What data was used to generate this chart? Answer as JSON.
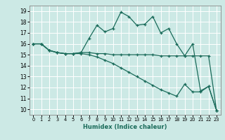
{
  "xlabel": "Humidex (Indice chaleur)",
  "bg_color": "#cce9e5",
  "grid_color": "#ffffff",
  "line_color": "#1a6b5a",
  "xlim": [
    -0.5,
    23.5
  ],
  "ylim": [
    9.5,
    19.5
  ],
  "xticks": [
    0,
    1,
    2,
    3,
    4,
    5,
    6,
    7,
    8,
    9,
    10,
    11,
    12,
    13,
    14,
    15,
    16,
    17,
    18,
    19,
    20,
    21,
    22,
    23
  ],
  "yticks": [
    10,
    11,
    12,
    13,
    14,
    15,
    16,
    17,
    18,
    19
  ],
  "line1_x": [
    0,
    1,
    2,
    3,
    4,
    5,
    6,
    7,
    8,
    9,
    10,
    11,
    12,
    13,
    14,
    15,
    16,
    17,
    18,
    19,
    20,
    21,
    22,
    23
  ],
  "line1_y": [
    16.0,
    16.0,
    15.4,
    15.2,
    15.1,
    15.1,
    15.2,
    16.5,
    17.7,
    17.1,
    17.4,
    18.9,
    18.5,
    17.7,
    17.8,
    18.5,
    17.0,
    17.4,
    16.0,
    14.9,
    16.0,
    11.7,
    12.1,
    9.9
  ],
  "line2_x": [
    0,
    1,
    2,
    3,
    4,
    5,
    6,
    7,
    8,
    9,
    10,
    11,
    12,
    13,
    14,
    15,
    16,
    17,
    18,
    19,
    20,
    21,
    22,
    23
  ],
  "line2_y": [
    16.0,
    16.0,
    15.4,
    15.2,
    15.1,
    15.1,
    15.2,
    15.2,
    15.1,
    15.1,
    15.0,
    15.0,
    15.0,
    15.0,
    15.0,
    15.0,
    14.9,
    14.9,
    14.9,
    14.9,
    14.9,
    14.9,
    14.9,
    9.9
  ],
  "line3_x": [
    0,
    1,
    2,
    3,
    4,
    5,
    6,
    7,
    8,
    9,
    10,
    11,
    12,
    13,
    14,
    15,
    16,
    17,
    18,
    19,
    20,
    21,
    22,
    23
  ],
  "line3_y": [
    16.0,
    16.0,
    15.4,
    15.2,
    15.1,
    15.1,
    15.1,
    15.0,
    14.8,
    14.5,
    14.2,
    13.8,
    13.4,
    13.0,
    12.6,
    12.2,
    11.8,
    11.5,
    11.2,
    12.3,
    11.6,
    11.6,
    12.1,
    9.9
  ]
}
